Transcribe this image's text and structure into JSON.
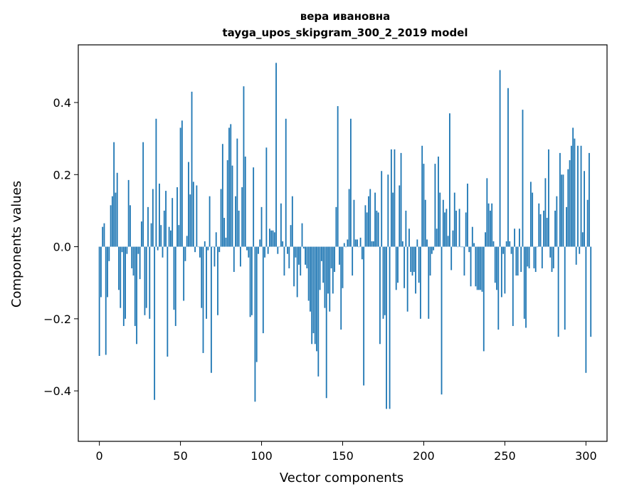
{
  "chart_data": {
    "type": "bar",
    "title": "вера ивановна",
    "subtitle": "tayga_upos_skipgram_300_2_2019 model",
    "xlabel": "Vector components",
    "ylabel": "Components values",
    "xlim": [
      -13,
      313
    ],
    "ylim": [
      -0.54,
      0.56
    ],
    "xticks": [
      0,
      50,
      100,
      150,
      200,
      250,
      300
    ],
    "yticks": [
      -0.4,
      -0.2,
      0.0,
      0.2,
      0.4
    ],
    "ytick_labels": [
      "−0.4",
      "−0.2",
      "0.0",
      "0.2",
      "0.4"
    ],
    "bar_color": "#1f77b4",
    "grid": false,
    "values": [
      -0.303,
      -0.14,
      0.055,
      0.065,
      -0.3,
      -0.14,
      -0.04,
      0.115,
      0.14,
      0.29,
      0.15,
      0.205,
      -0.12,
      -0.17,
      -0.015,
      -0.22,
      -0.2,
      -0.02,
      0.185,
      0.115,
      -0.06,
      -0.08,
      -0.22,
      -0.27,
      -0.02,
      -0.09,
      0.07,
      0.29,
      -0.19,
      -0.17,
      0.11,
      -0.2,
      0.065,
      0.16,
      -0.425,
      0.355,
      -0.01,
      0.175,
      0.06,
      -0.03,
      0.1,
      0.155,
      -0.305,
      0.055,
      0.045,
      0.135,
      -0.175,
      -0.22,
      0.165,
      0.06,
      0.33,
      0.35,
      -0.15,
      -0.04,
      0.03,
      0.235,
      0.145,
      0.43,
      0.18,
      -0.015,
      0.17,
      0.0,
      -0.03,
      -0.17,
      -0.295,
      0.015,
      -0.2,
      -0.01,
      0.14,
      -0.35,
      0.0,
      -0.055,
      0.04,
      -0.19,
      -0.015,
      0.16,
      0.285,
      0.08,
      0.025,
      0.24,
      0.33,
      0.34,
      0.225,
      -0.07,
      0.14,
      0.3,
      0.1,
      -0.055,
      0.165,
      0.445,
      0.25,
      -0.01,
      -0.03,
      -0.195,
      -0.19,
      0.22,
      -0.43,
      -0.32,
      -0.02,
      0.02,
      0.11,
      -0.24,
      -0.03,
      0.275,
      -0.02,
      0.05,
      0.045,
      0.045,
      0.04,
      0.51,
      -0.02,
      0.0,
      0.12,
      0.015,
      -0.08,
      0.355,
      -0.02,
      -0.06,
      0.06,
      0.14,
      -0.11,
      -0.03,
      -0.14,
      -0.05,
      -0.08,
      0.065,
      -0.005,
      -0.05,
      -0.06,
      -0.15,
      -0.18,
      -0.27,
      -0.24,
      -0.27,
      -0.29,
      -0.36,
      -0.12,
      -0.04,
      -0.1,
      -0.17,
      -0.42,
      -0.13,
      -0.18,
      -0.06,
      -0.13,
      -0.07,
      0.11,
      0.39,
      -0.05,
      -0.23,
      -0.115,
      0.01,
      0.0,
      0.02,
      0.16,
      0.355,
      -0.08,
      0.13,
      0.02,
      0.02,
      0.0,
      0.025,
      -0.035,
      -0.385,
      0.115,
      0.095,
      0.14,
      0.16,
      0.015,
      0.015,
      0.15,
      0.1,
      0.095,
      -0.27,
      0.21,
      -0.2,
      -0.19,
      -0.45,
      0.2,
      -0.45,
      0.27,
      0.15,
      0.27,
      -0.12,
      -0.1,
      0.17,
      0.26,
      0.015,
      -0.115,
      0.1,
      -0.18,
      0.05,
      -0.07,
      -0.08,
      -0.07,
      -0.13,
      0.02,
      -0.1,
      -0.2,
      0.28,
      0.23,
      0.13,
      0.02,
      -0.2,
      -0.08,
      -0.02,
      -0.01,
      0.23,
      0.05,
      0.25,
      0.15,
      -0.41,
      0.13,
      0.095,
      0.105,
      0.03,
      0.37,
      -0.065,
      0.045,
      0.15,
      0.1,
      0.0,
      0.105,
      0.0,
      0.0,
      -0.08,
      0.095,
      0.175,
      -0.015,
      -0.11,
      0.055,
      0.01,
      -0.11,
      -0.12,
      -0.12,
      -0.12,
      -0.125,
      -0.29,
      0.04,
      0.19,
      0.12,
      0.1,
      0.12,
      0.015,
      -0.1,
      -0.12,
      -0.23,
      0.49,
      -0.14,
      -0.02,
      -0.13,
      0.015,
      0.44,
      0.015,
      -0.02,
      -0.22,
      0.05,
      -0.08,
      -0.08,
      0.05,
      -0.07,
      0.38,
      -0.2,
      -0.225,
      -0.055,
      -0.06,
      0.18,
      0.15,
      -0.06,
      -0.07,
      0.0,
      0.12,
      0.09,
      -0.06,
      0.1,
      0.19,
      0.08,
      0.27,
      -0.03,
      -0.07,
      -0.06,
      0.1,
      0.14,
      -0.25,
      0.26,
      0.2,
      0.2,
      -0.23,
      0.11,
      0.215,
      0.24,
      0.28,
      0.33,
      0.3,
      -0.05,
      0.28,
      -0.02,
      0.28,
      0.04,
      0.21,
      -0.35,
      0.13,
      0.26,
      -0.25
    ]
  }
}
